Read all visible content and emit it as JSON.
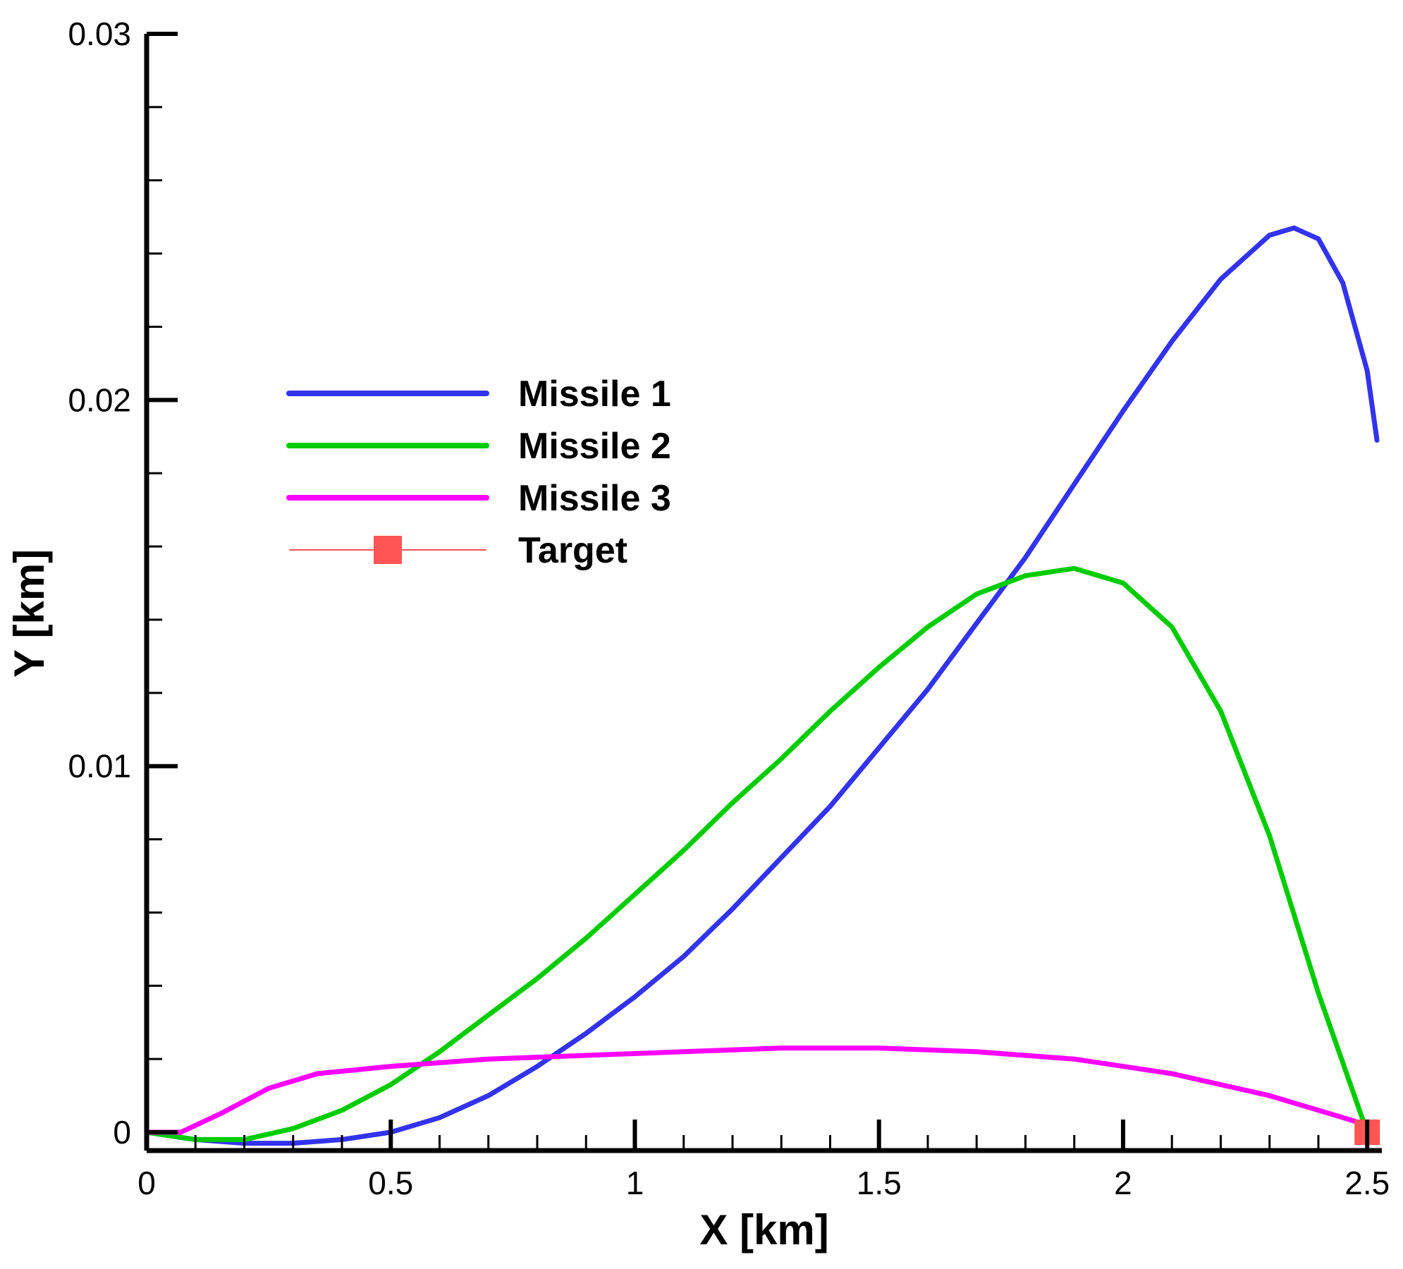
{
  "chart_data": {
    "type": "line",
    "title": "",
    "xlabel": "X [km]",
    "ylabel": "Y [km]",
    "xlim": [
      0,
      2.53
    ],
    "ylim": [
      -0.0005,
      0.03
    ],
    "xticks": [
      {
        "value": 0,
        "label": "0"
      },
      {
        "value": 0.5,
        "label": "0.5"
      },
      {
        "value": 1,
        "label": "1"
      },
      {
        "value": 1.5,
        "label": "1.5"
      },
      {
        "value": 2,
        "label": "2"
      },
      {
        "value": 2.5,
        "label": "2.5"
      }
    ],
    "yticks": [
      {
        "value": 0,
        "label": "0"
      },
      {
        "value": 0.01,
        "label": "0.01"
      },
      {
        "value": 0.02,
        "label": "0.02"
      },
      {
        "value": 0.03,
        "label": "0.03"
      }
    ],
    "x_minor_step": 0.1,
    "y_minor_step": 0.002,
    "grid": false,
    "legend_position": "upper-left",
    "series": [
      {
        "name": "Missile 1",
        "color": "#3333ee",
        "points": [
          [
            0,
            0
          ],
          [
            0.1,
            -0.0002
          ],
          [
            0.2,
            -0.0003
          ],
          [
            0.3,
            -0.0003
          ],
          [
            0.4,
            -0.0002
          ],
          [
            0.5,
            0
          ],
          [
            0.6,
            0.0004
          ],
          [
            0.7,
            0.001
          ],
          [
            0.8,
            0.0018
          ],
          [
            0.9,
            0.0027
          ],
          [
            1.0,
            0.0037
          ],
          [
            1.1,
            0.0048
          ],
          [
            1.2,
            0.0061
          ],
          [
            1.3,
            0.0075
          ],
          [
            1.4,
            0.0089
          ],
          [
            1.5,
            0.0105
          ],
          [
            1.6,
            0.0121
          ],
          [
            1.7,
            0.0139
          ],
          [
            1.8,
            0.0157
          ],
          [
            1.9,
            0.0177
          ],
          [
            2.0,
            0.0197
          ],
          [
            2.1,
            0.0216
          ],
          [
            2.2,
            0.0233
          ],
          [
            2.3,
            0.0245
          ],
          [
            2.35,
            0.0247
          ],
          [
            2.4,
            0.0244
          ],
          [
            2.45,
            0.0232
          ],
          [
            2.5,
            0.0208
          ],
          [
            2.52,
            0.0189
          ]
        ]
      },
      {
        "name": "Missile 2",
        "color": "#00cc00",
        "points": [
          [
            0,
            0
          ],
          [
            0.1,
            -0.0002
          ],
          [
            0.2,
            -0.0002
          ],
          [
            0.3,
            0.0001
          ],
          [
            0.4,
            0.0006
          ],
          [
            0.5,
            0.0013
          ],
          [
            0.6,
            0.0022
          ],
          [
            0.7,
            0.0032
          ],
          [
            0.8,
            0.0042
          ],
          [
            0.9,
            0.0053
          ],
          [
            1.0,
            0.0065
          ],
          [
            1.1,
            0.0077
          ],
          [
            1.2,
            0.009
          ],
          [
            1.3,
            0.0102
          ],
          [
            1.4,
            0.0115
          ],
          [
            1.5,
            0.0127
          ],
          [
            1.6,
            0.0138
          ],
          [
            1.7,
            0.0147
          ],
          [
            1.8,
            0.0152
          ],
          [
            1.9,
            0.0154
          ],
          [
            2.0,
            0.015
          ],
          [
            2.1,
            0.0138
          ],
          [
            2.2,
            0.0115
          ],
          [
            2.3,
            0.0081
          ],
          [
            2.4,
            0.0038
          ],
          [
            2.5,
            0
          ]
        ]
      },
      {
        "name": "Missile 3",
        "color": "#ff00ff",
        "points": [
          [
            0,
            0
          ],
          [
            0.07,
            0
          ],
          [
            0.15,
            0.0005
          ],
          [
            0.25,
            0.0012
          ],
          [
            0.35,
            0.0016
          ],
          [
            0.5,
            0.0018
          ],
          [
            0.7,
            0.002
          ],
          [
            0.9,
            0.0021
          ],
          [
            1.1,
            0.0022
          ],
          [
            1.3,
            0.0023
          ],
          [
            1.5,
            0.0023
          ],
          [
            1.7,
            0.0022
          ],
          [
            1.9,
            0.002
          ],
          [
            2.1,
            0.0016
          ],
          [
            2.3,
            0.001
          ],
          [
            2.5,
            0.0002
          ]
        ]
      },
      {
        "name": "Target",
        "color": "#ff5555",
        "marker": "square",
        "points": [
          [
            2.5,
            0
          ]
        ]
      }
    ]
  }
}
